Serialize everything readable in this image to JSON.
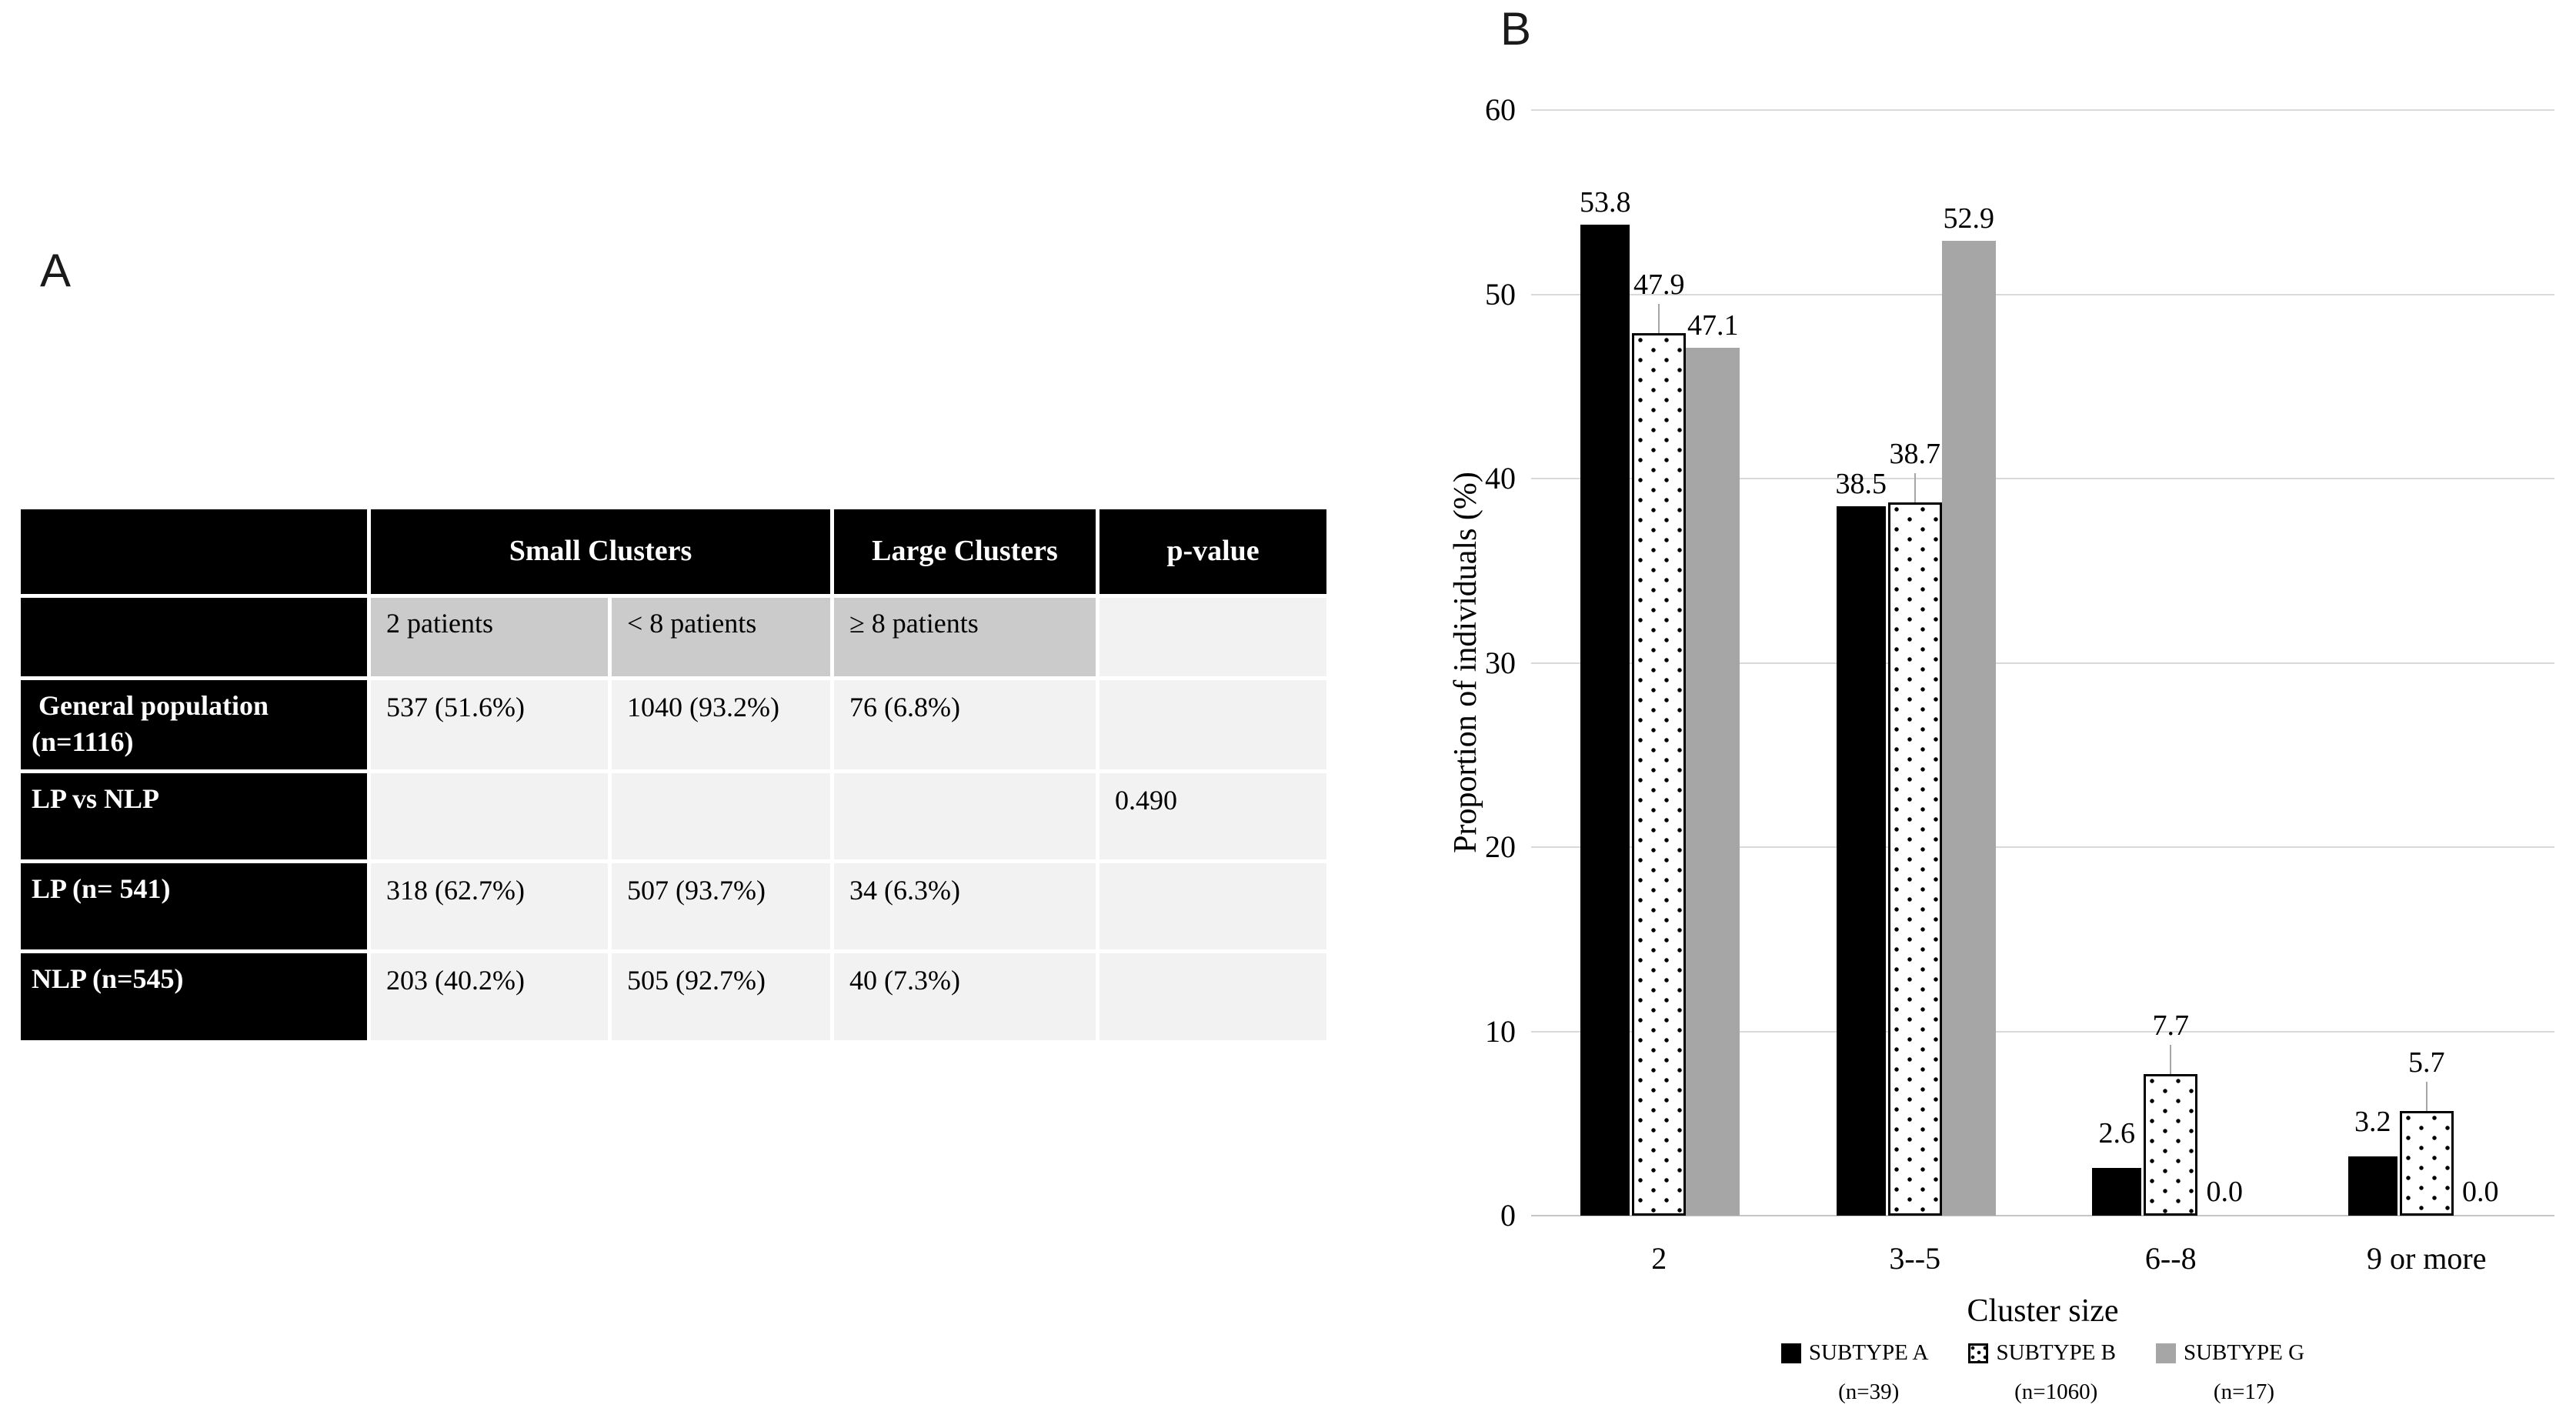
{
  "panel_a": {
    "label": "A",
    "table": {
      "header": {
        "small_clusters": "Small Clusters",
        "large_clusters": "Large Clusters",
        "p_value": "p-value"
      },
      "subheader": [
        "2 patients",
        "< 8 patients",
        "≥ 8 patients"
      ],
      "rows": [
        {
          "label": " General population\n(n=1116)",
          "cells": [
            "537 (51.6%)",
            "1040 (93.2%)",
            "76 (6.8%)",
            ""
          ]
        },
        {
          "label": "LP vs NLP",
          "cells": [
            "",
            "",
            "",
            "0.490"
          ]
        },
        {
          "label": "LP (n= 541)",
          "cells": [
            "318 (62.7%)",
            "507 (93.7%)",
            "34 (6.3%)",
            ""
          ]
        },
        {
          "label": "NLP (n=545)",
          "cells": [
            "203 (40.2%)",
            "505 (92.7%)",
            "40 (7.3%)",
            ""
          ]
        }
      ]
    }
  },
  "panel_b": {
    "label": "B"
  },
  "chart_data": {
    "type": "bar",
    "title": "",
    "categories": [
      "2",
      "3--5",
      "6--8",
      "9 or more"
    ],
    "series": [
      {
        "name": "SUBTYPE A",
        "n_label": "(n=39)",
        "values": [
          53.8,
          38.5,
          2.6,
          3.2
        ],
        "style": "solid-black",
        "label_leader": false
      },
      {
        "name": "SUBTYPE B",
        "n_label": "(n=1060)",
        "values": [
          47.9,
          38.7,
          7.7,
          5.7
        ],
        "style": "dotted-white",
        "label_leader": true
      },
      {
        "name": "SUBTYPE G",
        "n_label": "(n=17)",
        "values": [
          47.1,
          52.9,
          0.0,
          0.0
        ],
        "style": "solid-gray",
        "label_leader": false
      }
    ],
    "xlabel": "Cluster size",
    "ylabel": "Proportion of individuals (%)",
    "ylim": [
      0,
      60
    ],
    "yticks": [
      0,
      10,
      20,
      30,
      40,
      50,
      60
    ],
    "grid": true,
    "legend_position": "bottom",
    "value_format": "one-decimal"
  },
  "colors": {
    "bar_black": "#000000",
    "bar_gray": "#a6a6a6",
    "dotted_fill": "#ffffff",
    "gridline": "#d9d9d9",
    "baseline": "#c6c6c6",
    "table_header_bg": "#000000",
    "table_subheader_bg": "#cbcbcb",
    "table_cell_bg": "#f2f2f2",
    "leader_line": "#a6a6a6"
  }
}
